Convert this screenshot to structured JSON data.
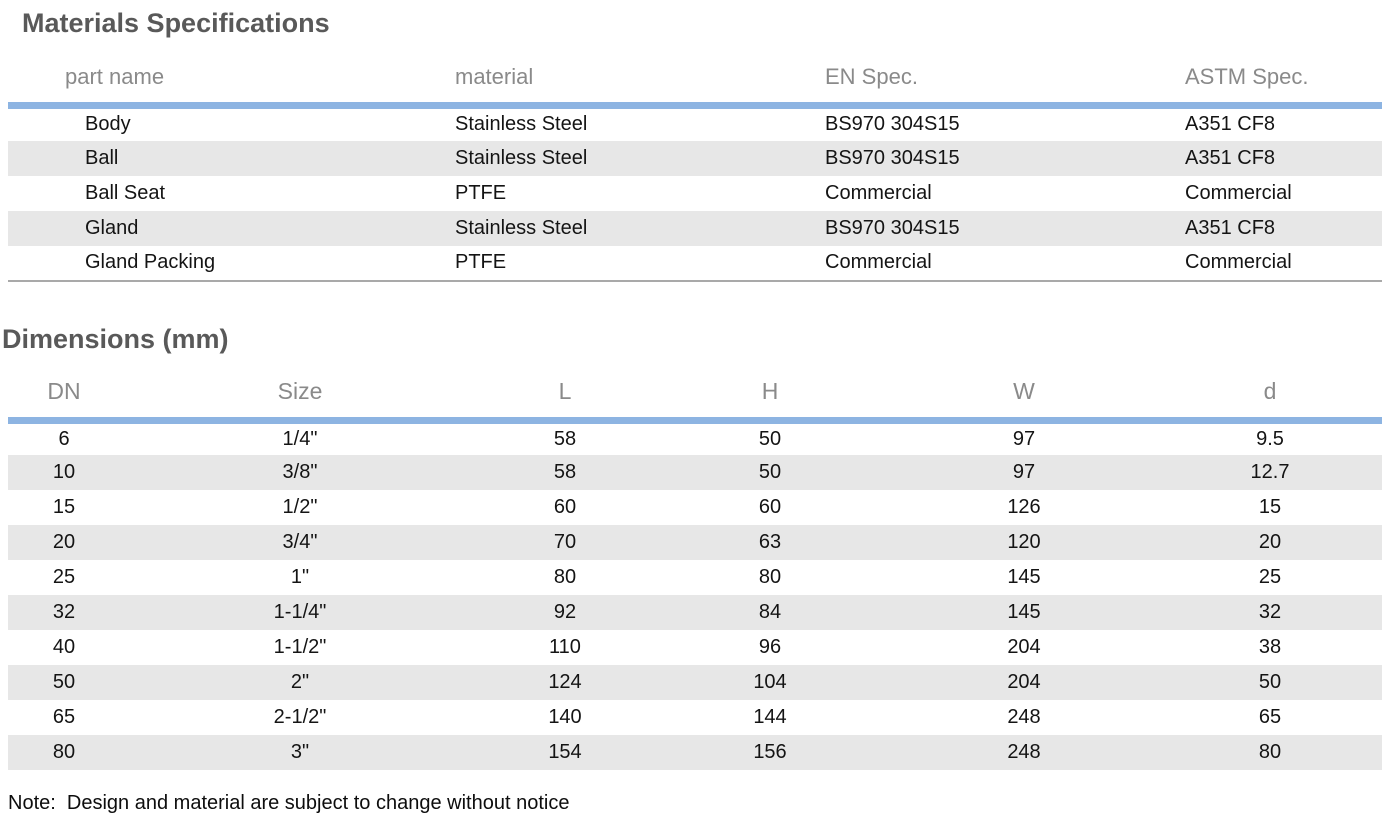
{
  "materials_section": {
    "title": "Materials Specifications",
    "table": {
      "columns": [
        "part name",
        "material",
        "EN Spec.",
        "ASTM Spec."
      ],
      "rows": [
        [
          "Body",
          "Stainless Steel",
          "BS970 304S15",
          "A351 CF8"
        ],
        [
          "Ball",
          "Stainless Steel",
          "BS970 304S15",
          "A351 CF8"
        ],
        [
          "Ball Seat",
          "PTFE",
          "Commercial",
          "Commercial"
        ],
        [
          "Gland",
          "Stainless Steel",
          "BS970 304S15",
          "A351 CF8"
        ],
        [
          "Gland Packing",
          "PTFE",
          "Commercial",
          "Commercial"
        ]
      ]
    }
  },
  "dimensions_section": {
    "title": "Dimensions (mm)",
    "table": {
      "columns": [
        "DN",
        "Size",
        "L",
        "H",
        "W",
        "d"
      ],
      "rows": [
        [
          "6",
          "1/4\"",
          "58",
          "50",
          "97",
          "9.5"
        ],
        [
          "10",
          "3/8\"",
          "58",
          "50",
          "97",
          "12.7"
        ],
        [
          "15",
          "1/2\"",
          "60",
          "60",
          "126",
          "15"
        ],
        [
          "20",
          "3/4\"",
          "70",
          "63",
          "120",
          "20"
        ],
        [
          "25",
          "1\"",
          "80",
          "80",
          "145",
          "25"
        ],
        [
          "32",
          "1-1/4\"",
          "92",
          "84",
          "145",
          "32"
        ],
        [
          "40",
          "1-1/2\"",
          "110",
          "96",
          "204",
          "38"
        ],
        [
          "50",
          "2\"",
          "124",
          "104",
          "204",
          "50"
        ],
        [
          "65",
          "2-1/2\"",
          "140",
          "144",
          "248",
          "65"
        ],
        [
          "80",
          "3\"",
          "154",
          "156",
          "248",
          "80"
        ]
      ]
    }
  },
  "note": "Note:  Design and material are subject to change without notice",
  "colors": {
    "accent_blue": "#8db4e2",
    "row_stripe": "#e7e7e7",
    "heading_gray": "#595959",
    "column_header_gray": "#8a8a8a"
  }
}
